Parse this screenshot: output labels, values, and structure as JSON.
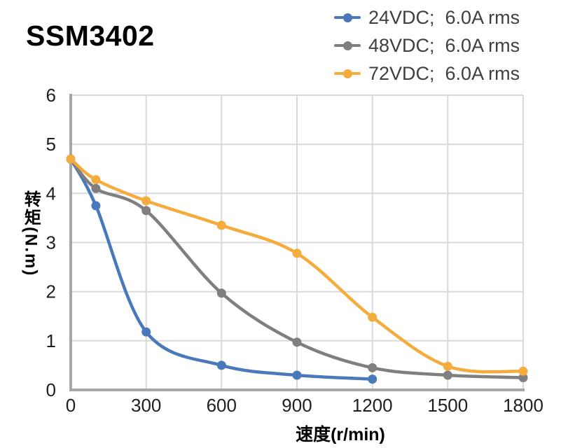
{
  "title": "SSM3402",
  "chart_data": {
    "type": "line",
    "title": "SSM3402",
    "xlabel": "速度(r/min)",
    "ylabel": "转矩(N.m)",
    "xlim": [
      0,
      1800
    ],
    "ylim": [
      0,
      6
    ],
    "x_ticks": [
      0,
      300,
      600,
      900,
      1200,
      1500,
      1800
    ],
    "y_ticks": [
      0,
      1,
      2,
      3,
      4,
      5,
      6
    ],
    "grid": true,
    "legend_position": "top-right",
    "grid_color": "#D9D9DB",
    "axis_color": "#A7A7A7",
    "tick_color": "#1F1F1F",
    "legend_text_color": "#3F3F3F",
    "series": [
      {
        "name": "24VDC;  6.0A rms",
        "color": "#4979BA",
        "x": [
          0,
          100,
          300,
          600,
          900,
          1200
        ],
        "y": [
          4.7,
          3.75,
          1.18,
          0.5,
          0.3,
          0.22
        ]
      },
      {
        "name": "48VDC;  6.0A rms",
        "color": "#7F7F7F",
        "x": [
          0,
          100,
          300,
          600,
          900,
          1200,
          1500,
          1800
        ],
        "y": [
          4.7,
          4.1,
          3.65,
          1.97,
          0.97,
          0.45,
          0.3,
          0.25
        ]
      },
      {
        "name": "72VDC;  6.0A rms",
        "color": "#F5AC3C",
        "x": [
          0,
          100,
          300,
          600,
          900,
          1200,
          1500,
          1800
        ],
        "y": [
          4.7,
          4.28,
          3.85,
          3.35,
          2.78,
          1.48,
          0.48,
          0.38
        ]
      }
    ]
  }
}
